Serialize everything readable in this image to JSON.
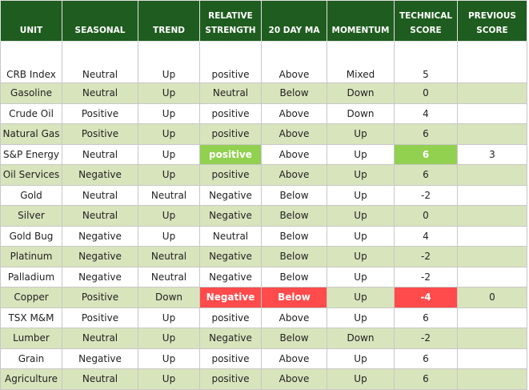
{
  "table": {
    "header": [
      "UNIT",
      "SEASONAL",
      "TREND",
      "RELATIVE STRENGTH",
      "20 DAY MA",
      "MOMENTUM",
      "TECHNICAL SCORE",
      "PREVIOUS SCORE"
    ],
    "rows": [
      [
        "CRB Index",
        "Neutral",
        "Up",
        "positive",
        "Above",
        "Mixed",
        "5",
        null
      ],
      [
        "Gasoline",
        "Neutral",
        "Up",
        "Neutral",
        "Below",
        "Down",
        "0",
        null
      ],
      [
        "Crude Oil",
        "Positive",
        "Up",
        "positive",
        "Above",
        "Down",
        "4",
        null
      ],
      [
        "Natural Gas",
        "Positive",
        "Up",
        "positive",
        "Above",
        "Up",
        "6",
        null
      ],
      [
        "S&P Energy",
        "Neutral",
        "Up",
        "positive",
        "Above",
        "Up",
        "6",
        "3"
      ],
      [
        "Oil Services",
        "Negative",
        "Up",
        "positive",
        "Above",
        "Up",
        "6",
        null
      ],
      [
        "Gold",
        "Neutral",
        "Neutral",
        "Negative",
        "Below",
        "Up",
        "-2",
        null
      ],
      [
        "Silver",
        "Neutral",
        "Up",
        "Negative",
        "Below",
        "Up",
        "0",
        null
      ],
      [
        "Gold Bug",
        "Negative",
        "Up",
        "Neutral",
        "Below",
        "Up",
        "4",
        null
      ],
      [
        "Platinum",
        "Negative",
        "Neutral",
        "Negative",
        "Below",
        "Up",
        "-2",
        null
      ],
      [
        "Palladium",
        "Negative",
        "Neutral",
        "Negative",
        "Below",
        "Up",
        "-2",
        null
      ],
      [
        "Copper",
        "Positive",
        "Down",
        "Negative",
        "Below",
        "Up",
        "-4",
        "0"
      ],
      [
        "TSX M&M",
        "Positive",
        "Up",
        "positive",
        "Above",
        "Up",
        "6",
        null
      ],
      [
        "Lumber",
        "Neutral",
        "Up",
        "Negative",
        "Below",
        "Down",
        "-2",
        null
      ],
      [
        "Grain",
        "Negative",
        "Up",
        "positive",
        "Above",
        "Up",
        "6",
        null
      ],
      [
        "Agriculture",
        "Neutral",
        "Up",
        "positive",
        "Above",
        "Up",
        "6",
        null
      ]
    ]
  }
}
